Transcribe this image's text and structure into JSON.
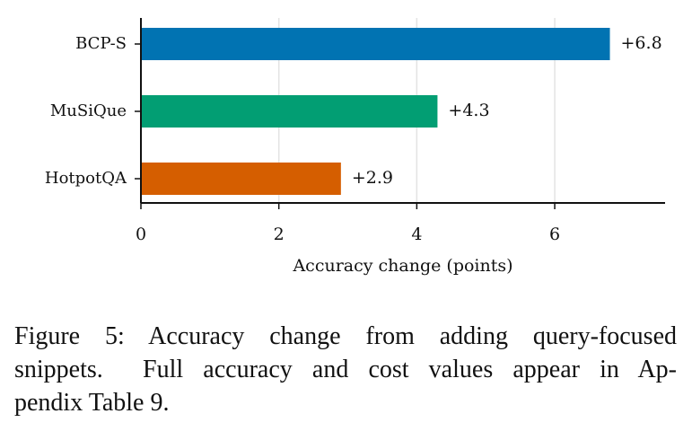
{
  "chart_data": {
    "type": "barh",
    "categories": [
      "BCP-S",
      "MuSiQue",
      "HotpotQA"
    ],
    "values": [
      6.8,
      4.3,
      2.9
    ],
    "value_labels": [
      "+6.8",
      "+4.3",
      "+2.9"
    ],
    "colors": [
      "#0173b2",
      "#029e73",
      "#d55e00"
    ],
    "xlabel": "Accuracy change (points)",
    "xlim": [
      0,
      7.6
    ],
    "xticks": [
      0,
      2,
      4,
      6
    ],
    "grid": true
  },
  "caption": {
    "lines": [
      "Figure 5: Accuracy change from adding query-focused",
      "snippets.  Full accuracy and cost values appear in Ap-",
      "pendix Table 9."
    ]
  }
}
